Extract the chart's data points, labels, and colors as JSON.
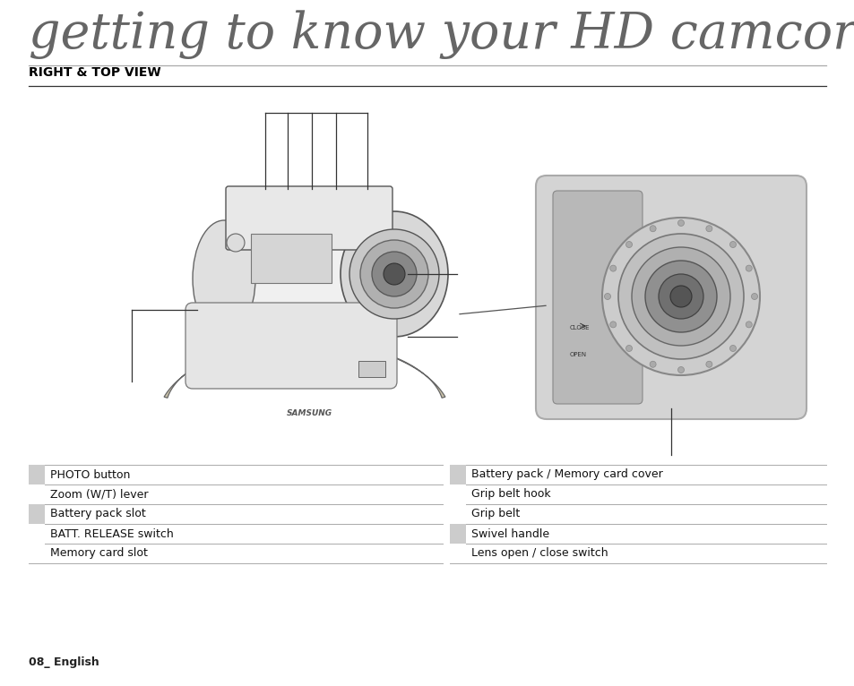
{
  "title": "getting to know your HD camcorder",
  "section_title": "RIGHT & TOP VIEW",
  "left_items": [
    "PHOTO button",
    "Zoom (W/T) lever",
    "Battery pack slot",
    "BATT. RELEASE switch",
    "Memory card slot"
  ],
  "right_items": [
    "Battery pack / Memory card cover",
    "Grip belt hook",
    "Grip belt",
    "Swivel handle",
    "Lens open / close switch"
  ],
  "footer_text": "08_ English",
  "bg_color": "#ffffff",
  "text_color": "#111111",
  "title_color": "#666666",
  "section_color": "#000000",
  "line_color": "#bbbbbb",
  "row_shade_colors": [
    "#cccccc",
    "#ffffff",
    "#cccccc",
    "#ffffff",
    "#ffffff"
  ],
  "right_row_shade_colors": [
    "#cccccc",
    "#ffffff",
    "#ffffff",
    "#cccccc",
    "#ffffff"
  ],
  "title_fontsize": 40,
  "section_fontsize": 10,
  "table_fontsize": 9
}
